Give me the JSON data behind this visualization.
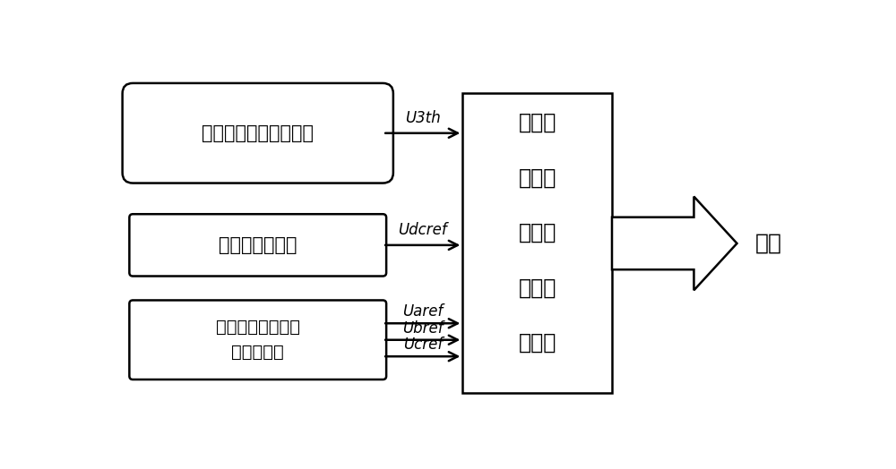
{
  "bg_color": "#ffffff",
  "box1_text": "生成最优三次谐波电压",
  "box2_text": "直流电压参考值",
  "box3_line1": "闭环控制产生的三",
  "box3_line2": "相参考电压",
  "center_box_lines": [
    "桥臂参",
    "考电压",
    "生成与",
    "驱动信",
    "号下发"
  ],
  "output_label": "桥臂",
  "arrow1_label": "U3th",
  "arrow2_label": "Udcref",
  "arrow3a_label": "Uaref",
  "arrow3b_label": "Ubref",
  "arrow3c_label": "Ucref",
  "figsize": [
    10.0,
    5.24
  ],
  "dpi": 100,
  "text_color": "#000000",
  "box_edge_color": "#000000",
  "box_fill_color": "#ffffff",
  "arrow_color": "#000000",
  "lw": 1.8
}
